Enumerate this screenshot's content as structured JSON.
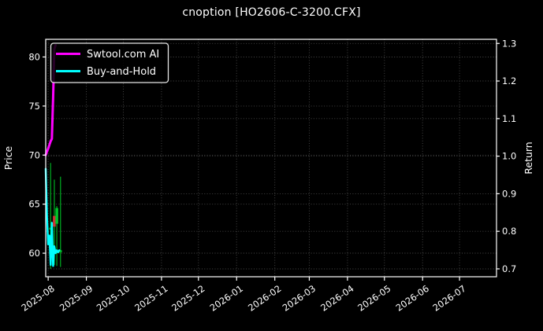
{
  "chart_data": {
    "type": "candlestick+line",
    "title": "cnoption [HO2606-C-3200.CFX]",
    "grid": true,
    "x_domain": [
      "2025-07-30",
      "2026-07-31"
    ],
    "x_ticks": [
      {
        "date": "2025-08-01",
        "label": "2025-08"
      },
      {
        "date": "2025-09-01",
        "label": "2025-09"
      },
      {
        "date": "2025-10-01",
        "label": "2025-10"
      },
      {
        "date": "2025-11-01",
        "label": "2025-11"
      },
      {
        "date": "2025-12-01",
        "label": "2025-12"
      },
      {
        "date": "2026-01-01",
        "label": "2026-01"
      },
      {
        "date": "2026-02-01",
        "label": "2026-02"
      },
      {
        "date": "2026-03-01",
        "label": "2026-03"
      },
      {
        "date": "2026-04-01",
        "label": "2026-04"
      },
      {
        "date": "2026-05-01",
        "label": "2026-05"
      },
      {
        "date": "2026-06-01",
        "label": "2026-06"
      },
      {
        "date": "2026-07-01",
        "label": "2026-07"
      }
    ],
    "y_left": {
      "label": "Price",
      "range": [
        57.6,
        81.8
      ],
      "ticks": [
        {
          "value": 60,
          "label": "60"
        },
        {
          "value": 65,
          "label": "65"
        },
        {
          "value": 70,
          "label": "70"
        },
        {
          "value": 75,
          "label": "75"
        },
        {
          "value": 80,
          "label": "80"
        }
      ]
    },
    "y_right": {
      "label": "Return",
      "range": [
        0.679,
        1.311
      ],
      "ticks": [
        {
          "value": 0.7,
          "label": "0.7"
        },
        {
          "value": 0.8,
          "label": "0.8"
        },
        {
          "value": 0.9,
          "label": "0.9"
        },
        {
          "value": 1.0,
          "label": "1.0"
        },
        {
          "value": 1.1,
          "label": "1.1"
        },
        {
          "value": 1.2,
          "label": "1.2"
        },
        {
          "value": 1.3,
          "label": "1.3"
        }
      ]
    },
    "legend": {
      "position": "upper-left",
      "entries": [
        {
          "label": "Swtool.com AI",
          "color": "#ff00ff"
        },
        {
          "label": "Buy-and-Hold",
          "color": "#00ffff"
        }
      ]
    },
    "series": [
      {
        "name": "Swtool.com AI",
        "axis": "right",
        "color": "#ff00ff",
        "width": 3,
        "points": [
          [
            "2025-07-30",
            1.003
          ],
          [
            "2025-07-31",
            1.012
          ],
          [
            "2025-08-01",
            1.02
          ],
          [
            "2025-08-02",
            1.03
          ],
          [
            "2025-08-03",
            1.04
          ],
          [
            "2025-08-04",
            1.046
          ],
          [
            "2025-08-05",
            1.155
          ],
          [
            "2025-08-06",
            1.285
          ],
          [
            "2025-08-07",
            1.295
          ]
        ]
      },
      {
        "name": "Buy-and-Hold",
        "axis": "left",
        "color": "#00ffff",
        "width": 2.5,
        "points": [
          [
            "2025-07-30",
            68.6
          ],
          [
            "2025-07-31",
            63.8
          ],
          [
            "2025-08-01",
            60.9
          ],
          [
            "2025-08-02",
            61.8
          ],
          [
            "2025-08-03",
            58.8
          ],
          [
            "2025-08-04",
            63.1
          ],
          [
            "2025-08-05",
            58.7
          ],
          [
            "2025-08-06",
            60.7
          ],
          [
            "2025-08-07",
            60.0
          ],
          [
            "2025-08-08",
            60.3
          ],
          [
            "2025-08-09",
            60.1
          ],
          [
            "2025-08-10",
            60.3
          ]
        ]
      }
    ],
    "candles": [
      {
        "date": "2025-08-03",
        "open": 62.4,
        "high": 69.2,
        "low": 58.4,
        "close": 62.6
      },
      {
        "date": "2025-08-06",
        "open": 63.8,
        "high": 67.5,
        "low": 58.8,
        "close": 62.7
      },
      {
        "date": "2025-08-08",
        "open": 63.0,
        "high": 64.8,
        "low": 58.7,
        "close": 64.6
      },
      {
        "date": "2025-08-11",
        "open": 60.1,
        "high": 67.8,
        "low": 58.6,
        "close": 60.3
      }
    ],
    "colors": {
      "background": "#000000",
      "text": "#ffffff",
      "spine": "#ffffff",
      "grid": "#4a4a4a",
      "candle_up": "#00c32a",
      "candle_down": "#cf3535",
      "candle_wick": "#00a020"
    }
  }
}
